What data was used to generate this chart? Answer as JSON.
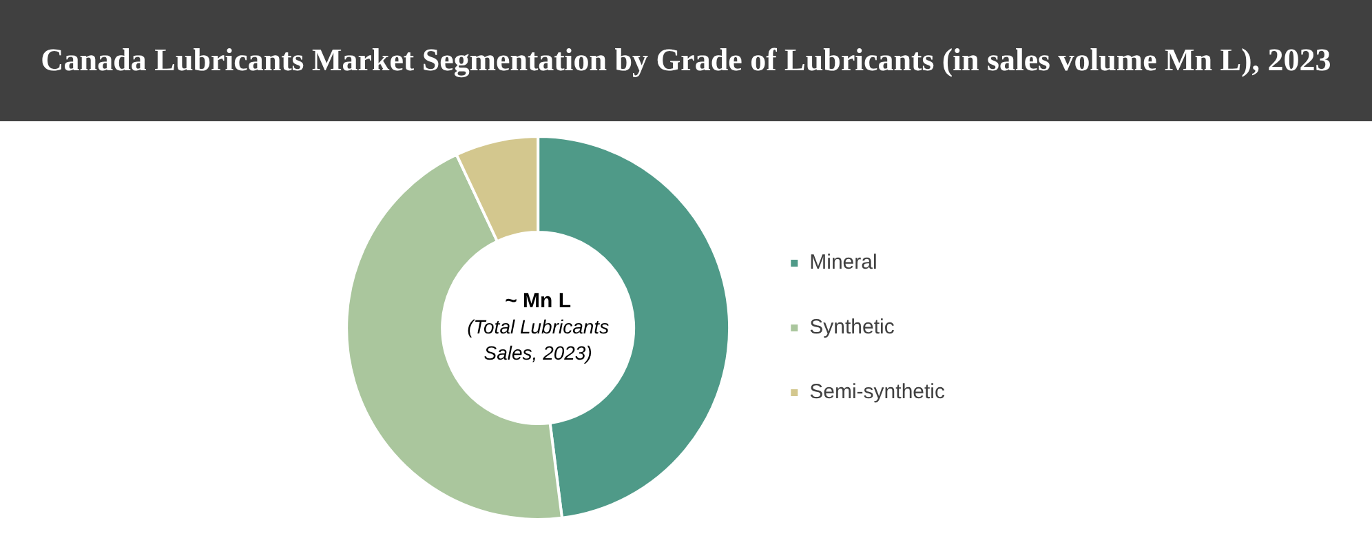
{
  "chart_data": {
    "type": "donut",
    "title": "Canada Lubricants Market Segmentation by Grade of Lubricants (in sales volume Mn L), 2023",
    "categories": [
      "Mineral",
      "Synthetic",
      "Semi-synthetic"
    ],
    "values": [
      48,
      45,
      7
    ],
    "colors": [
      "#4f9a88",
      "#aac69d",
      "#d3c78e"
    ],
    "annotations": [
      "~ Mn L",
      "(Total Lubricants Sales, 2023)"
    ],
    "legend": "right"
  }
}
